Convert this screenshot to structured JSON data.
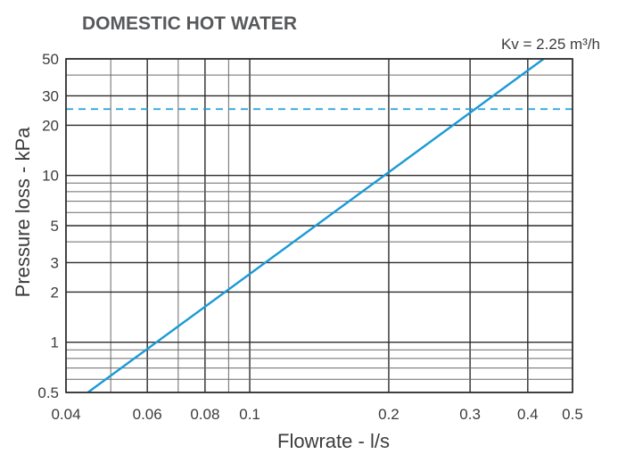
{
  "chart_data": {
    "type": "line",
    "title": "DOMESTIC HOT WATER",
    "annotation": "Kv = 2.25 m³/h",
    "xlabel": "Flowrate - l/s",
    "ylabel": "Pressure loss - kPa",
    "xscale": "log",
    "yscale": "log",
    "xlim": [
      0.04,
      0.5
    ],
    "ylim": [
      0.5,
      50
    ],
    "x_ticks": [
      0.04,
      0.06,
      0.08,
      0.1,
      0.2,
      0.3,
      0.4,
      0.5
    ],
    "x_tick_labels": [
      "0.04",
      "0.06",
      "0.08",
      "0.1",
      "0.2",
      "0.3",
      "0.4",
      "0.5"
    ],
    "y_ticks": [
      0.5,
      1,
      2,
      3,
      5,
      10,
      20,
      30,
      50
    ],
    "y_tick_labels": [
      "0.5",
      "1",
      "2",
      "3",
      "5",
      "10",
      "20",
      "30",
      "50"
    ],
    "grid": true,
    "series": [
      {
        "style": "solid",
        "color": "#1a9ad6",
        "x": [
          0.0446,
          0.433
        ],
        "y": [
          0.5,
          50
        ]
      }
    ],
    "reference_lines": [
      {
        "orientation": "horizontal",
        "y": 25,
        "style": "dashed",
        "color": "#1a9ad6"
      }
    ]
  }
}
